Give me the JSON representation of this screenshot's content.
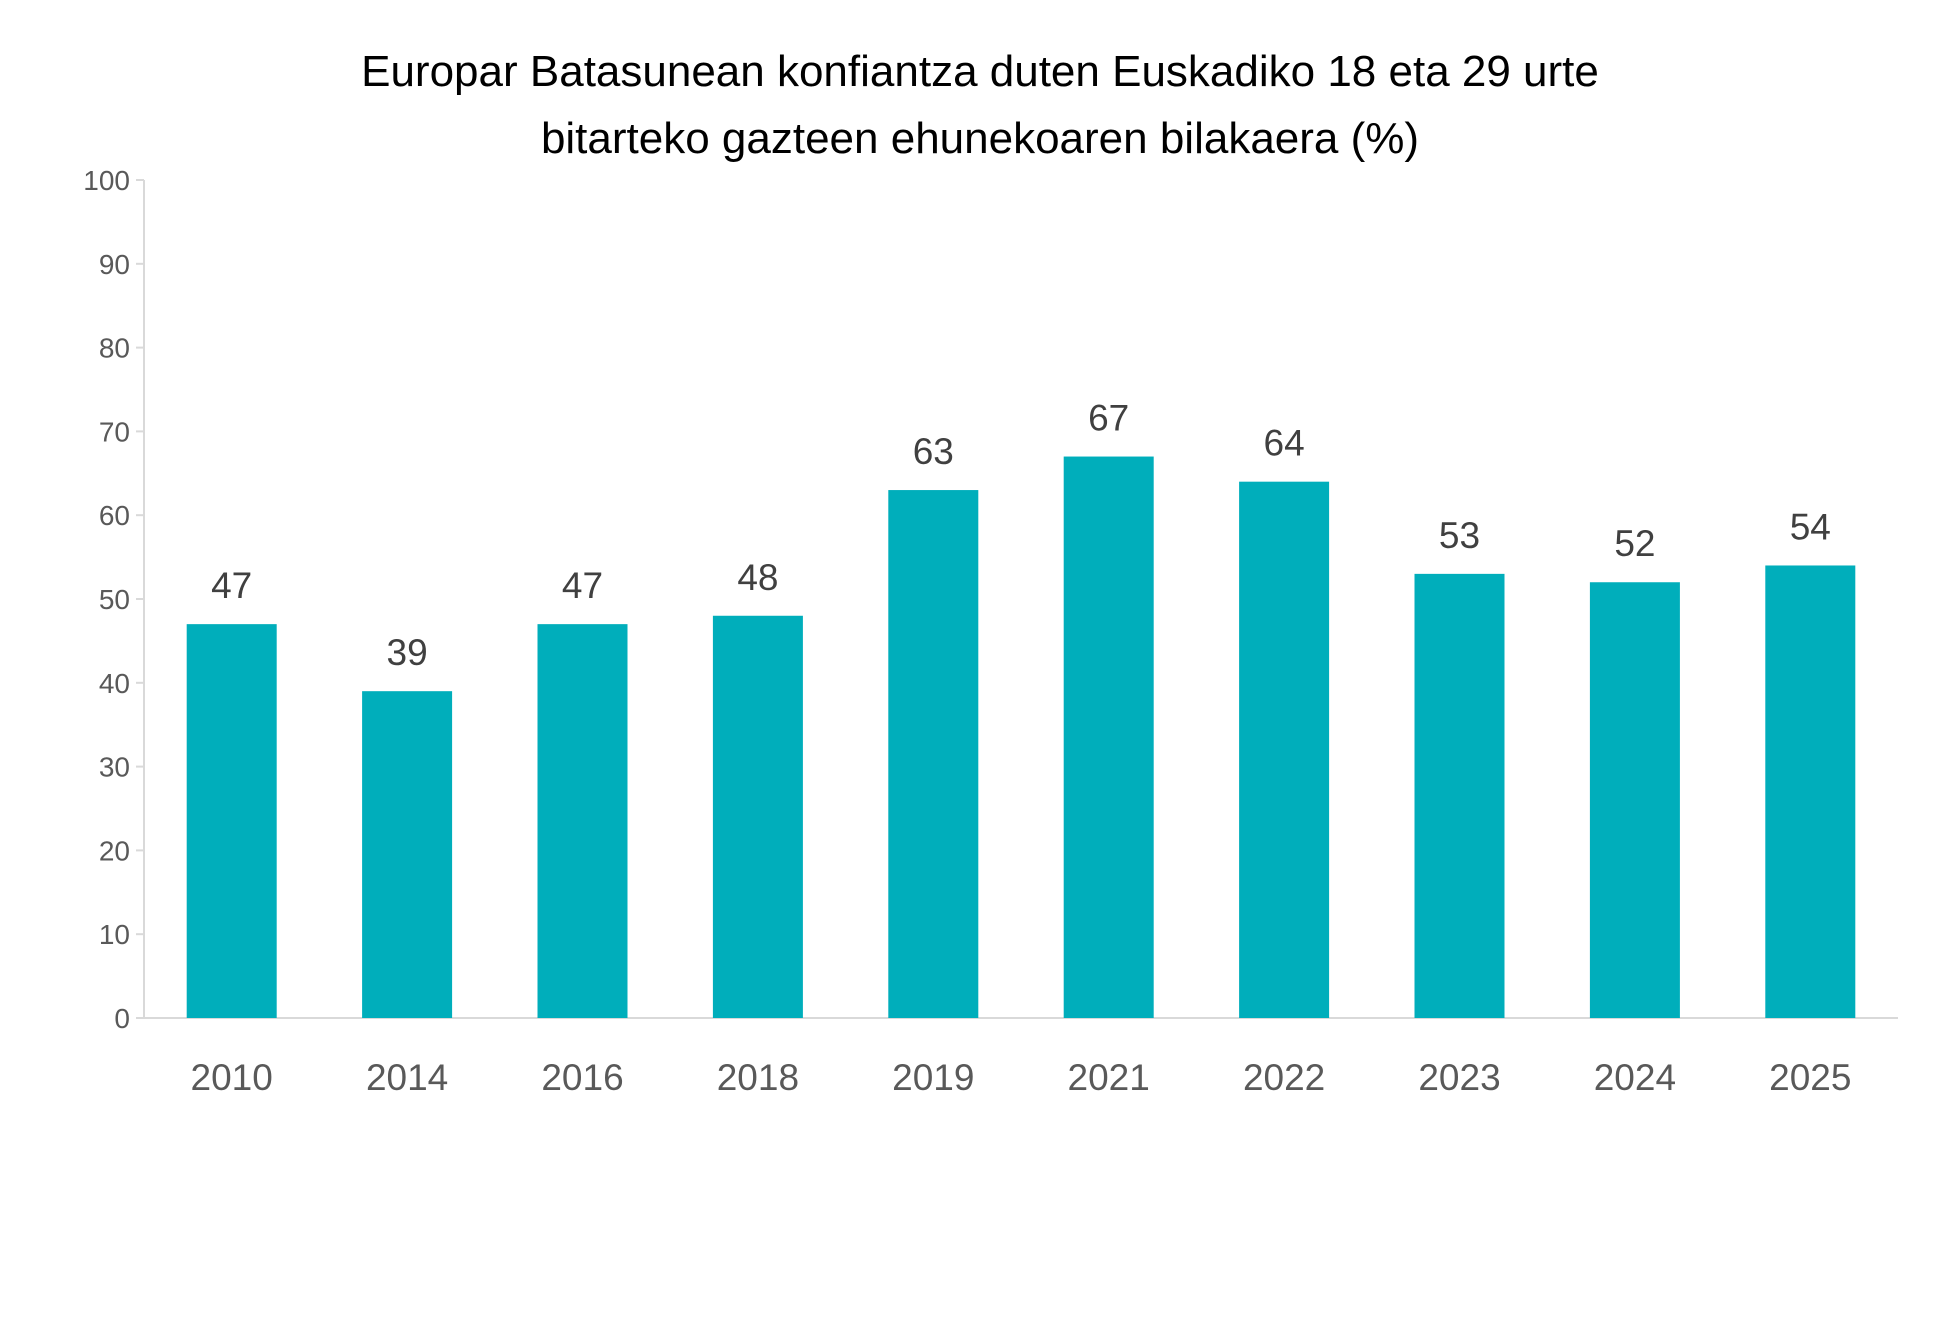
{
  "chart_data": {
    "type": "bar",
    "title": "Europar Batasunean konfiantza duten Euskadiko 18 eta 29 urte bitarteko gazteen ehunekoaren bilakaera (%)",
    "title_lines": [
      "Europar Batasunean konfiantza duten Euskadiko 18 eta 29 urte",
      "bitarteko gazteen ehunekoaren bilakaera (%)"
    ],
    "categories": [
      "2010",
      "2014",
      "2016",
      "2018",
      "2019",
      "2021",
      "2022",
      "2023",
      "2024",
      "2025"
    ],
    "values": [
      47,
      39,
      47,
      48,
      63,
      67,
      64,
      53,
      52,
      54
    ],
    "xlabel": "",
    "ylabel": "",
    "ylim": [
      0,
      100
    ],
    "yticks": [
      0,
      10,
      20,
      30,
      40,
      50,
      60,
      70,
      80,
      90,
      100
    ],
    "grid": false,
    "legend": "none",
    "bar_color": "#00AEBB"
  }
}
